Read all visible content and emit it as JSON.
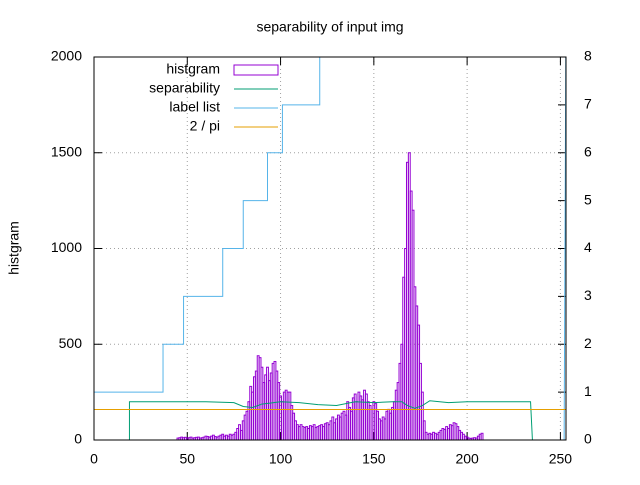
{
  "chart_data": {
    "type": "histogram",
    "title": "separability of input img",
    "y_label": "histgram",
    "xlim": [
      0,
      253
    ],
    "ylim": [
      0,
      2000
    ],
    "y2lim": [
      0,
      8
    ],
    "xticks": [
      0,
      50,
      100,
      150,
      200,
      250
    ],
    "yticks": [
      0,
      500,
      1000,
      1500,
      2000
    ],
    "y2ticks": [
      0,
      1,
      2,
      3,
      4,
      5,
      6,
      7,
      8
    ],
    "grid": true,
    "legend": "top-left",
    "series": [
      {
        "name": "histgram",
        "type": "bar",
        "color": "#9400d3",
        "x": [
          45,
          46,
          47,
          48,
          49,
          50,
          51,
          52,
          53,
          54,
          55,
          56,
          57,
          58,
          59,
          60,
          61,
          62,
          63,
          64,
          65,
          66,
          67,
          68,
          69,
          70,
          71,
          72,
          73,
          74,
          75,
          76,
          77,
          78,
          79,
          80,
          81,
          82,
          83,
          84,
          85,
          86,
          87,
          88,
          89,
          90,
          91,
          92,
          93,
          94,
          95,
          96,
          97,
          98,
          99,
          100,
          101,
          102,
          103,
          104,
          105,
          106,
          107,
          108,
          109,
          110,
          111,
          112,
          113,
          114,
          115,
          116,
          117,
          118,
          119,
          120,
          121,
          122,
          123,
          124,
          125,
          126,
          127,
          128,
          129,
          130,
          131,
          132,
          133,
          134,
          135,
          136,
          137,
          138,
          139,
          140,
          141,
          142,
          143,
          144,
          145,
          146,
          147,
          148,
          149,
          150,
          151,
          152,
          153,
          154,
          155,
          156,
          157,
          158,
          159,
          160,
          161,
          162,
          163,
          164,
          165,
          166,
          167,
          168,
          169,
          170,
          171,
          172,
          173,
          174,
          175,
          176,
          177,
          178,
          179,
          180,
          181,
          182,
          183,
          184,
          185,
          186,
          187,
          188,
          189,
          190,
          191,
          192,
          193,
          194,
          195,
          196,
          197,
          198,
          199,
          200,
          201,
          202,
          203,
          204,
          205,
          206,
          207,
          208
        ],
        "values": [
          10,
          12,
          15,
          12,
          14,
          10,
          12,
          15,
          10,
          12,
          14,
          15,
          10,
          12,
          15,
          20,
          18,
          15,
          20,
          25,
          18,
          15,
          20,
          25,
          30,
          20,
          25,
          20,
          30,
          25,
          30,
          40,
          60,
          80,
          50,
          100,
          130,
          150,
          200,
          280,
          250,
          330,
          360,
          440,
          430,
          380,
          300,
          340,
          380,
          310,
          350,
          400,
          410,
          360,
          300,
          230,
          200,
          250,
          260,
          250,
          250,
          180,
          140,
          100,
          80,
          70,
          80,
          70,
          65,
          70,
          60,
          75,
          70,
          80,
          65,
          70,
          75,
          80,
          70,
          85,
          90,
          80,
          100,
          120,
          90,
          110,
          130,
          120,
          140,
          150,
          130,
          200,
          170,
          150,
          220,
          240,
          200,
          250,
          230,
          210,
          260,
          240,
          200,
          180,
          160,
          200,
          190,
          150,
          110,
          100,
          120,
          110,
          150,
          160,
          140,
          170,
          200,
          260,
          300,
          400,
          500,
          850,
          1000,
          1450,
          1500,
          1300,
          1200,
          800,
          700,
          600,
          400,
          250,
          100,
          40,
          30,
          35,
          30,
          40,
          35,
          30,
          40,
          50,
          60,
          55,
          70,
          60,
          80,
          75,
          90,
          85,
          70,
          50,
          40,
          30,
          20,
          15,
          10,
          8,
          10,
          12,
          10,
          20,
          30,
          35
        ]
      },
      {
        "name": "separability",
        "type": "line",
        "axis": "y2",
        "color": "#009e73",
        "x": [
          19,
          19,
          30,
          60,
          75,
          80,
          85,
          90,
          100,
          110,
          120,
          130,
          140,
          150,
          160,
          165,
          168,
          172,
          176,
          180,
          190,
          200,
          220,
          234,
          235
        ],
        "values": [
          0,
          0.8,
          0.8,
          0.8,
          0.78,
          0.7,
          0.68,
          0.75,
          0.8,
          0.78,
          0.74,
          0.72,
          0.8,
          0.78,
          0.8,
          0.8,
          0.72,
          0.66,
          0.72,
          0.82,
          0.78,
          0.8,
          0.8,
          0.8,
          0
        ]
      },
      {
        "name": "label list",
        "type": "line",
        "axis": "y2",
        "color": "#56b4e9",
        "x": [
          0,
          37,
          37,
          48,
          48,
          69,
          69,
          80,
          80,
          93,
          93,
          101,
          101,
          121,
          121,
          122,
          null,
          252,
          253
        ],
        "values": [
          1,
          1,
          2,
          2,
          3,
          3,
          4,
          4,
          5,
          5,
          6,
          6,
          7,
          7,
          8,
          9,
          null,
          0,
          9
        ]
      },
      {
        "name": "2 / pi",
        "type": "line",
        "axis": "y2",
        "color": "#e69f00",
        "x": [
          0,
          253
        ],
        "values": [
          0.6366,
          0.6366
        ]
      }
    ]
  }
}
